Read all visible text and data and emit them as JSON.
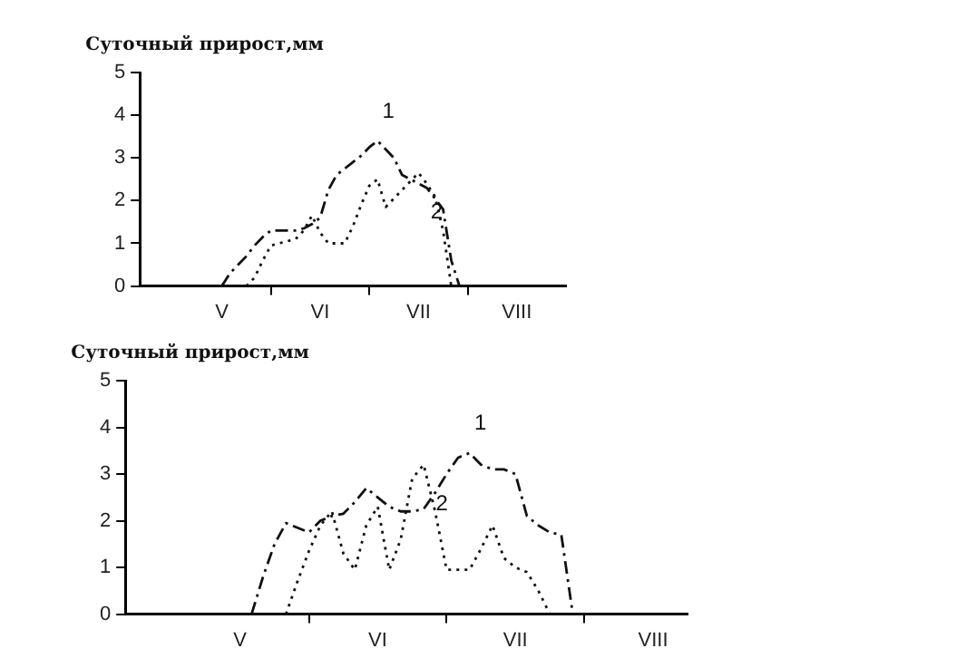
{
  "chart_data": [
    {
      "type": "line",
      "ylabel": "Суточный прирост,мм",
      "ylim": [
        0,
        5
      ],
      "yticks": [
        0,
        1,
        2,
        3,
        4,
        5
      ],
      "categories": [
        null,
        null,
        null,
        null,
        null,
        null,
        null,
        null,
        null,
        null,
        "V",
        null,
        null,
        null,
        null,
        null,
        null,
        null,
        null,
        null,
        null,
        null,
        "VI",
        null,
        null,
        null,
        null,
        null,
        null,
        null,
        null,
        null,
        null,
        null,
        "VII",
        null,
        null,
        null,
        null,
        null,
        null,
        null,
        null,
        null,
        null,
        null,
        "VIII",
        null,
        null,
        null,
        null,
        null,
        null
      ],
      "grid": false,
      "legend": false,
      "marker": "none",
      "series": [
        {
          "name": "1",
          "color": "#111111",
          "line_style": "dashed",
          "values": [
            null,
            null,
            null,
            null,
            null,
            null,
            null,
            null,
            null,
            null,
            0,
            0.3,
            0.5,
            0.7,
            0.95,
            1.15,
            1.3,
            1.3,
            1.3,
            1.3,
            1.35,
            1.45,
            1.6,
            2.25,
            2.6,
            2.75,
            2.9,
            3.05,
            3.25,
            3.4,
            3.2,
            3.0,
            2.6,
            2.5,
            2.4,
            2.3,
            2.05,
            1.8,
            0.6,
            0,
            null,
            null,
            null,
            null,
            null,
            null,
            null,
            null,
            null,
            null,
            null,
            null,
            null
          ]
        },
        {
          "name": "2",
          "color": "#111111",
          "line_style": "dotted",
          "values": [
            null,
            null,
            null,
            null,
            null,
            null,
            null,
            null,
            null,
            null,
            null,
            null,
            null,
            0,
            0.2,
            0.6,
            0.95,
            1.0,
            1.05,
            1.1,
            1.3,
            1.65,
            1.25,
            1.0,
            1.0,
            1.0,
            1.4,
            1.9,
            2.35,
            2.5,
            1.85,
            2.05,
            2.25,
            2.45,
            2.65,
            2.4,
            2.1,
            1.3,
            0,
            null,
            null,
            null,
            null,
            null,
            null,
            null,
            null,
            null,
            null,
            null,
            null,
            null,
            null
          ]
        }
      ]
    },
    {
      "type": "line",
      "ylabel": "Суточный прирост,мм",
      "ylim": [
        0,
        5
      ],
      "yticks": [
        0,
        1,
        2,
        3,
        4,
        5
      ],
      "categories": [
        null,
        null,
        null,
        null,
        null,
        null,
        null,
        null,
        null,
        null,
        "V",
        null,
        null,
        null,
        null,
        null,
        null,
        null,
        null,
        null,
        null,
        null,
        "VI",
        null,
        null,
        null,
        null,
        null,
        null,
        null,
        null,
        null,
        null,
        null,
        "VII",
        null,
        null,
        null,
        null,
        null,
        null,
        null,
        null,
        null,
        null,
        null,
        "VIII",
        null,
        null,
        null
      ],
      "grid": false,
      "legend": false,
      "marker": "none",
      "series": [
        {
          "name": "1",
          "color": "#111111",
          "line_style": "dashed",
          "values": [
            null,
            null,
            null,
            null,
            null,
            null,
            null,
            null,
            null,
            null,
            null,
            0,
            0.8,
            1.5,
            1.95,
            1.85,
            1.75,
            2.0,
            2.1,
            2.15,
            2.4,
            2.7,
            2.5,
            2.3,
            2.2,
            2.2,
            2.25,
            2.6,
            3.0,
            3.35,
            3.45,
            3.2,
            3.1,
            3.1,
            3.0,
            2.1,
            1.9,
            1.75,
            1.7,
            0,
            null,
            null,
            null,
            null,
            null,
            null,
            null,
            null,
            null,
            null
          ]
        },
        {
          "name": "2",
          "color": "#111111",
          "line_style": "dotted",
          "values": [
            null,
            null,
            null,
            null,
            null,
            null,
            null,
            null,
            null,
            null,
            null,
            null,
            null,
            null,
            0,
            0.7,
            1.35,
            1.9,
            2.2,
            1.3,
            0.95,
            1.9,
            2.3,
            0.95,
            1.6,
            2.9,
            3.2,
            2.2,
            0.95,
            0.95,
            0.95,
            1.4,
            1.9,
            1.2,
            1.0,
            0.9,
            0.5,
            0,
            null,
            null,
            null,
            null,
            null,
            null,
            null,
            null,
            null,
            null,
            null,
            null
          ]
        }
      ]
    }
  ]
}
